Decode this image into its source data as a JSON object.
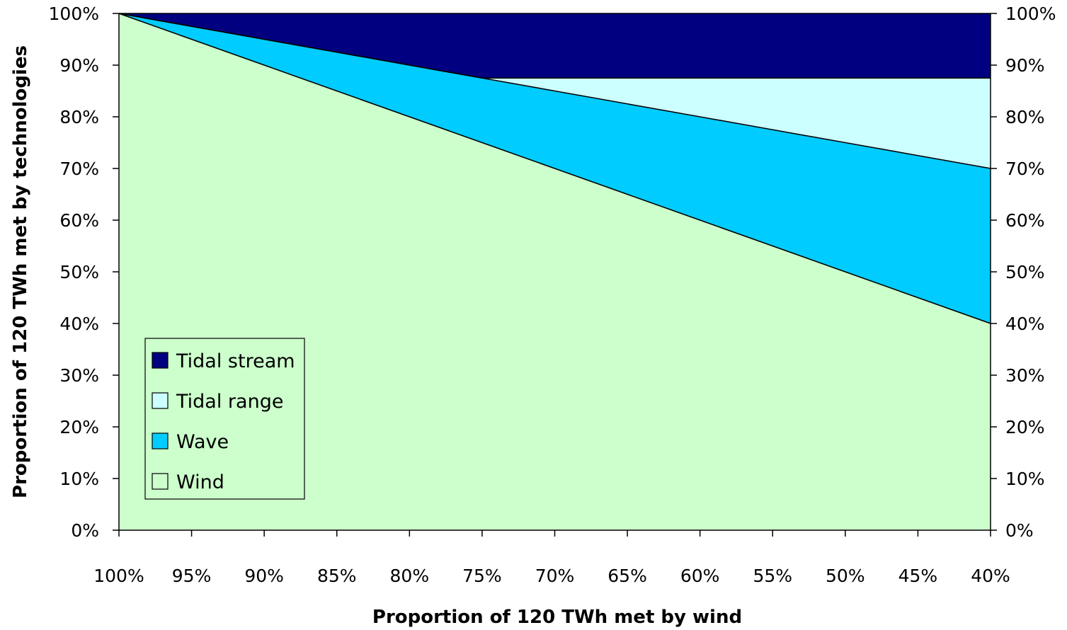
{
  "chart_data": {
    "type": "area",
    "stacked": true,
    "xlabel": "Proportion of 120 TWh met by wind",
    "ylabel": "Proportion of 120 TWh met by technologies",
    "x": [
      100,
      95,
      90,
      85,
      80,
      75,
      70,
      65,
      60,
      55,
      50,
      45,
      40
    ],
    "x_tick_labels": [
      "100%",
      "95%",
      "90%",
      "85%",
      "80%",
      "75%",
      "70%",
      "65%",
      "60%",
      "55%",
      "50%",
      "45%",
      "40%"
    ],
    "y_tick_labels": [
      "0%",
      "10%",
      "20%",
      "30%",
      "40%",
      "50%",
      "60%",
      "70%",
      "80%",
      "90%",
      "100%"
    ],
    "y_ticks": [
      0,
      10,
      20,
      30,
      40,
      50,
      60,
      70,
      80,
      90,
      100
    ],
    "right_axis_tick_labels": [
      "0%",
      "10%",
      "20%",
      "30%",
      "40%",
      "50%",
      "60%",
      "70%",
      "80%",
      "90%",
      "100%"
    ],
    "ylim": [
      0,
      100
    ],
    "x_reversed": true,
    "grid": false,
    "legend_position": "bottom-left",
    "series": [
      {
        "name": "Wind",
        "color": "#ccffcc",
        "values": [
          100,
          95,
          90,
          85,
          80,
          75,
          70,
          65,
          60,
          55,
          50,
          45,
          40
        ]
      },
      {
        "name": "Wave",
        "color": "#00ccff",
        "values": [
          0,
          2.5,
          5,
          7.5,
          10,
          12.5,
          15,
          17.5,
          20,
          22.5,
          25,
          27.5,
          30
        ]
      },
      {
        "name": "Tidal range",
        "color": "#ccffff",
        "values": [
          0,
          0,
          0,
          0,
          0,
          0,
          2.5,
          5,
          7.5,
          10,
          12.5,
          15,
          17.5
        ]
      },
      {
        "name": "Tidal stream",
        "color": "#000080",
        "values": [
          0,
          2.5,
          5,
          7.5,
          10,
          12.5,
          12.5,
          12.5,
          12.5,
          12.5,
          12.5,
          12.5,
          12.5
        ]
      }
    ],
    "legend_order": [
      "Tidal stream",
      "Tidal range",
      "Wave",
      "Wind"
    ]
  }
}
